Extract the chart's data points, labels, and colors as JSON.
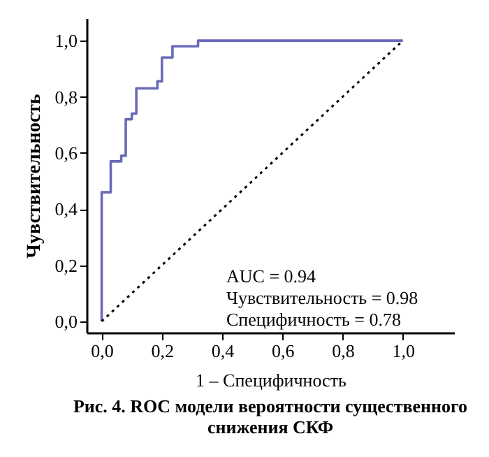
{
  "chart_data": {
    "type": "line",
    "title": "Рис. 4. ROC модели вероятности существенного снижения СКФ",
    "xlabel": "1 – Специфичность",
    "ylabel": "Чувствительность",
    "xlim": [
      -0.05,
      1.17
    ],
    "ylim": [
      -0.04,
      1.08
    ],
    "xticks": [
      {
        "value": 0,
        "label": "0,0"
      },
      {
        "value": 0.2,
        "label": "0,2"
      },
      {
        "value": 0.4,
        "label": "0,4"
      },
      {
        "value": 0.6,
        "label": "0,6"
      },
      {
        "value": 0.8,
        "label": "0,8"
      },
      {
        "value": 1,
        "label": "1,0"
      }
    ],
    "yticks": [
      {
        "value": 0,
        "label": "0,0"
      },
      {
        "value": 0.2,
        "label": "0,2"
      },
      {
        "value": 0.4,
        "label": "0,4"
      },
      {
        "value": 0.6,
        "label": "0,6"
      },
      {
        "value": 0.8,
        "label": "0,8"
      },
      {
        "value": 1,
        "label": "1,0"
      }
    ],
    "grid": false,
    "series": [
      {
        "color": "#6a6ab8",
        "line_style": "solid",
        "x": [
          0,
          0,
          0.03,
          0.03,
          0.065,
          0.065,
          0.08,
          0.08,
          0.1,
          0.1,
          0.115,
          0.115,
          0.185,
          0.185,
          0.2,
          0.2,
          0.235,
          0.235,
          0.32,
          0.32,
          1
        ],
        "values": [
          0,
          0.46,
          0.46,
          0.57,
          0.57,
          0.59,
          0.59,
          0.72,
          0.72,
          0.74,
          0.74,
          0.83,
          0.83,
          0.855,
          0.855,
          0.94,
          0.94,
          0.98,
          0.98,
          1,
          1
        ]
      },
      {
        "color": "#000000",
        "line_style": "dotted",
        "x": [
          0,
          1
        ],
        "values": [
          0,
          1
        ]
      }
    ],
    "annotations": [
      "AUC = 0.94",
      "Чувствительность = 0.98",
      "Специфичность = 0.78"
    ]
  }
}
